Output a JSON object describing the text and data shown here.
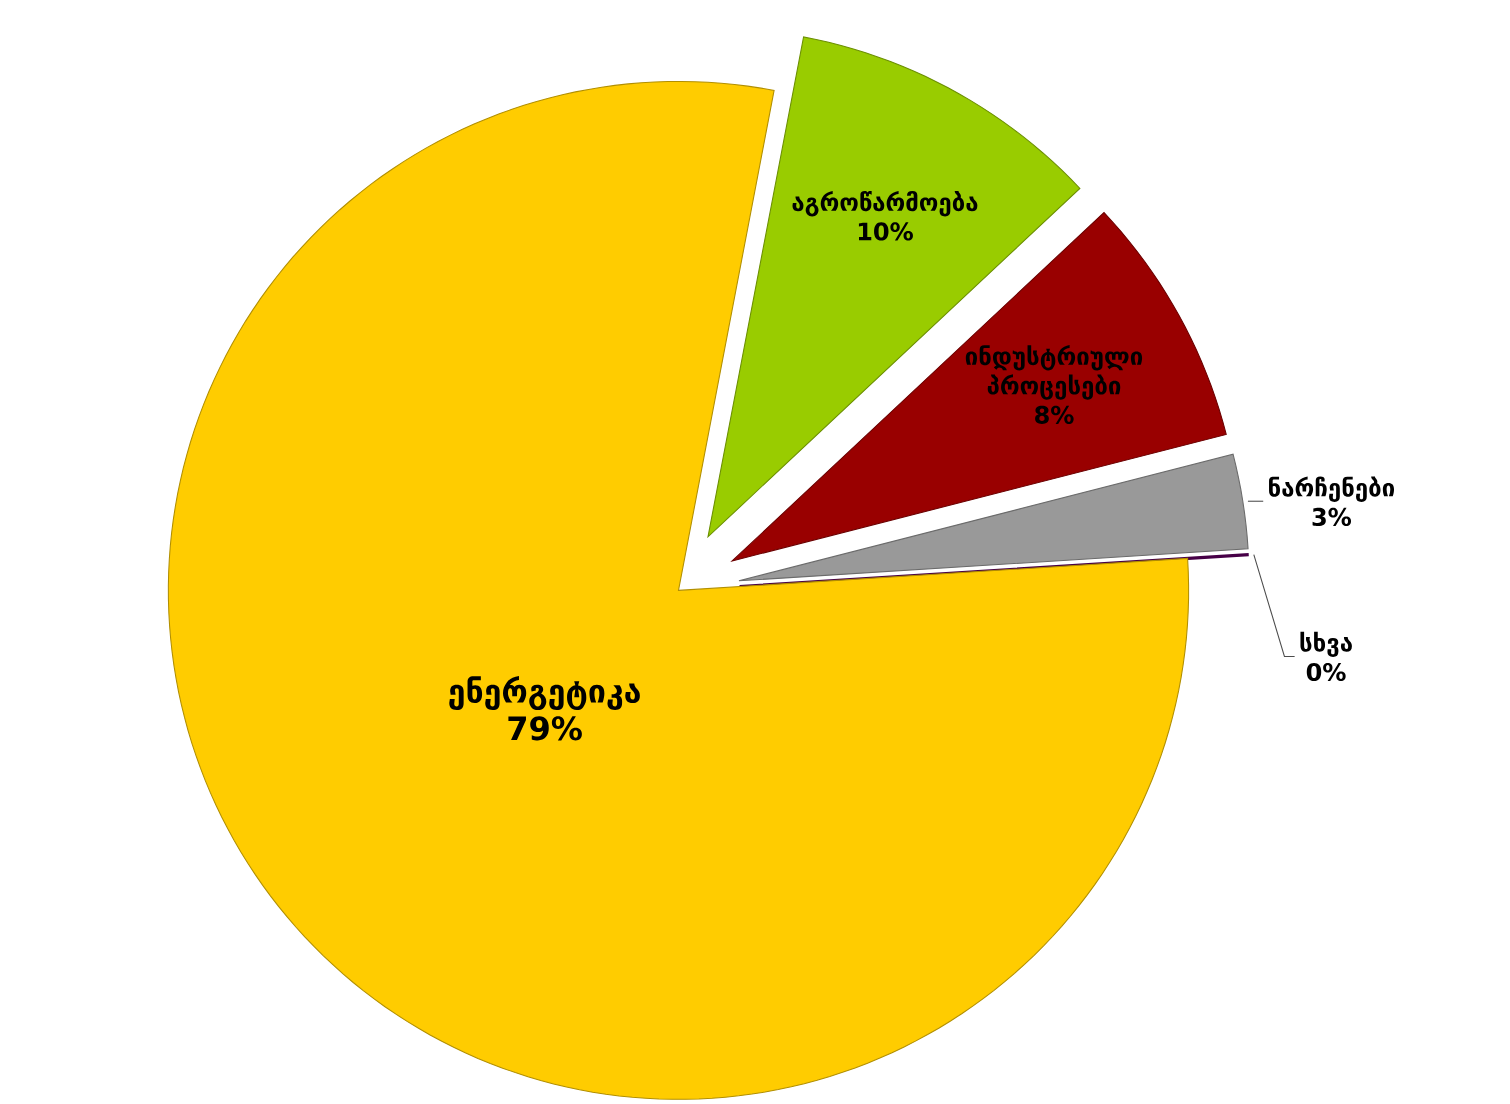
{
  "chart_data": {
    "type": "pie",
    "categories": [
      "აგროწარმოება",
      "ინდუსტრიული პროცესები",
      "ნარჩენები",
      "სხვა",
      "ენერგეტიკა"
    ],
    "values": [
      10,
      8,
      3,
      0,
      79
    ],
    "value_labels": [
      "10%",
      "8%",
      "3%",
      "0%",
      "79%"
    ],
    "colors": [
      "#99cc00",
      "#990000",
      "#999999",
      "#660066",
      "#ffcc00"
    ]
  }
}
